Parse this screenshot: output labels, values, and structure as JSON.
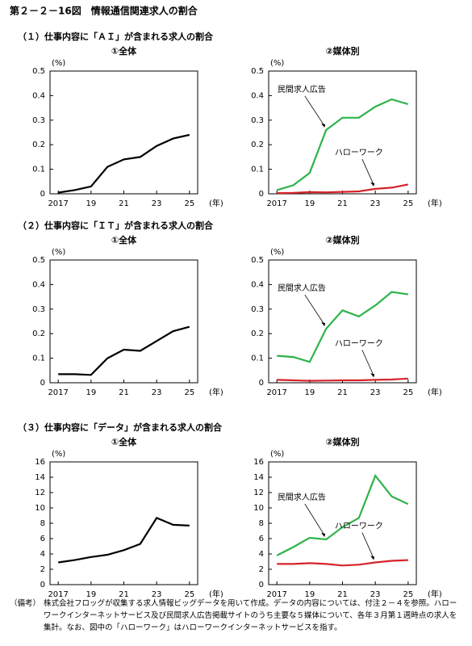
{
  "title": "第２－２－16図　情報通信関連求人の割合",
  "sections": [
    {
      "heading": "（１）仕事内容に「ＡＩ」が含まれる求人の割合"
    },
    {
      "heading": "（２）仕事内容に「ＩＴ」が含まれる求人の割合"
    },
    {
      "heading": "（３）仕事内容に「データ」が含まれる求人の割合"
    }
  ],
  "chart_data": [
    {
      "type": "line",
      "title": "①全体",
      "y_unit": "(%)",
      "x_unit": "(年)",
      "x": [
        2017,
        2018,
        2019,
        2020,
        2021,
        2022,
        2023,
        2024,
        2025
      ],
      "values": [
        0.005,
        0.015,
        0.03,
        0.11,
        0.14,
        0.15,
        0.195,
        0.225,
        0.24
      ],
      "color": "#000000",
      "xlim": [
        2016.5,
        2025.5
      ],
      "ylim": [
        0,
        0.5
      ],
      "xticks": [
        2017,
        {
          "value": 2019,
          "label": "19"
        },
        {
          "value": 2021,
          "label": "21"
        },
        {
          "value": 2023,
          "label": "23"
        },
        {
          "value": 2025,
          "label": "25"
        }
      ],
      "yticks": [
        0,
        0.1,
        0.2,
        0.3,
        0.4,
        0.5
      ]
    },
    {
      "type": "line",
      "title": "②媒体別",
      "y_unit": "(%)",
      "x_unit": "(年)",
      "x": [
        2017,
        2018,
        2019,
        2020,
        2021,
        2022,
        2023,
        2024,
        2025
      ],
      "series": [
        {
          "name": "民間求人広告",
          "color": "#2db34a",
          "values": [
            0.015,
            0.035,
            0.085,
            0.26,
            0.31,
            0.31,
            0.355,
            0.385,
            0.365
          ]
        },
        {
          "name": "ハローワーク",
          "color": "#d6232a",
          "values": [
            0.003,
            0.004,
            0.007,
            0.006,
            0.008,
            0.01,
            0.02,
            0.025,
            0.038
          ]
        }
      ],
      "xlim": [
        2016.5,
        2025.5
      ],
      "ylim": [
        0,
        0.5
      ],
      "xticks": [
        2017,
        {
          "value": 2019,
          "label": "19"
        },
        {
          "value": 2021,
          "label": "21"
        },
        {
          "value": 2023,
          "label": "23"
        },
        {
          "value": 2025,
          "label": "25"
        }
      ],
      "yticks": [
        0,
        0.1,
        0.2,
        0.3,
        0.4,
        0.5
      ]
    },
    {
      "type": "line",
      "title": "①全体",
      "y_unit": "(%)",
      "x_unit": "(年)",
      "x": [
        2017,
        2018,
        2019,
        2020,
        2021,
        2022,
        2023,
        2024,
        2025
      ],
      "values": [
        0.035,
        0.035,
        0.032,
        0.1,
        0.135,
        0.13,
        0.17,
        0.21,
        0.228
      ],
      "color": "#000000",
      "xlim": [
        2016.5,
        2025.5
      ],
      "ylim": [
        0,
        0.5
      ],
      "xticks": [
        2017,
        {
          "value": 2019,
          "label": "19"
        },
        {
          "value": 2021,
          "label": "21"
        },
        {
          "value": 2023,
          "label": "23"
        },
        {
          "value": 2025,
          "label": "25"
        }
      ],
      "yticks": [
        0,
        0.1,
        0.2,
        0.3,
        0.4,
        0.5
      ]
    },
    {
      "type": "line",
      "title": "②媒体別",
      "y_unit": "(%)",
      "x_unit": "(年)",
      "x": [
        2017,
        2018,
        2019,
        2020,
        2021,
        2022,
        2023,
        2024,
        2025
      ],
      "series": [
        {
          "name": "民間求人広告",
          "color": "#2db34a",
          "values": [
            0.11,
            0.105,
            0.085,
            0.22,
            0.295,
            0.27,
            0.315,
            0.37,
            0.36
          ]
        },
        {
          "name": "ハローワーク",
          "color": "#d6232a",
          "values": [
            0.012,
            0.01,
            0.008,
            0.009,
            0.01,
            0.01,
            0.012,
            0.013,
            0.017
          ]
        }
      ],
      "xlim": [
        2016.5,
        2025.5
      ],
      "ylim": [
        0,
        0.5
      ],
      "xticks": [
        2017,
        {
          "value": 2019,
          "label": "19"
        },
        {
          "value": 2021,
          "label": "21"
        },
        {
          "value": 2023,
          "label": "23"
        },
        {
          "value": 2025,
          "label": "25"
        }
      ],
      "yticks": [
        0,
        0.1,
        0.2,
        0.3,
        0.4,
        0.5
      ]
    },
    {
      "type": "line",
      "title": "①全体",
      "y_unit": "(%)",
      "x_unit": "(年)",
      "x": [
        2017,
        2018,
        2019,
        2020,
        2021,
        2022,
        2023,
        2024,
        2025
      ],
      "values": [
        2.9,
        3.2,
        3.6,
        3.9,
        4.5,
        5.3,
        8.7,
        7.8,
        7.7
      ],
      "color": "#000000",
      "xlim": [
        2016.5,
        2025.5
      ],
      "ylim": [
        0,
        16
      ],
      "xticks": [
        2017,
        {
          "value": 2019,
          "label": "19"
        },
        {
          "value": 2021,
          "label": "21"
        },
        {
          "value": 2023,
          "label": "23"
        },
        {
          "value": 2025,
          "label": "25"
        }
      ],
      "yticks": [
        0,
        2,
        4,
        6,
        8,
        10,
        12,
        14,
        16
      ]
    },
    {
      "type": "line",
      "title": "②媒体別",
      "y_unit": "(%)",
      "x_unit": "(年)",
      "x": [
        2017,
        2018,
        2019,
        2020,
        2021,
        2022,
        2023,
        2024,
        2025
      ],
      "series": [
        {
          "name": "民間求人広告",
          "color": "#2db34a",
          "values": [
            3.8,
            4.9,
            6.1,
            5.9,
            7.5,
            8.7,
            14.2,
            11.5,
            10.5
          ]
        },
        {
          "name": "ハローワーク",
          "color": "#d6232a",
          "values": [
            2.7,
            2.7,
            2.8,
            2.7,
            2.5,
            2.6,
            2.9,
            3.1,
            3.2
          ]
        }
      ],
      "xlim": [
        2016.5,
        2025.5
      ],
      "ylim": [
        0,
        16
      ],
      "xticks": [
        2017,
        {
          "value": 2019,
          "label": "19"
        },
        {
          "value": 2021,
          "label": "21"
        },
        {
          "value": 2023,
          "label": "23"
        },
        {
          "value": 2025,
          "label": "25"
        }
      ],
      "yticks": [
        0,
        2,
        4,
        6,
        8,
        10,
        12,
        14,
        16
      ]
    }
  ],
  "note": {
    "label": "（備考）",
    "text": "株式会社フロッグが収集する求人情報ビッグデータを用いて作成。データの内容については、付注２－４を参照。ハローワークインターネットサービス及び民間求人広告掲載サイトのうち主要な５媒体について、各年３月第１週時点の求人を集計。なお、図中の「ハローワーク」はハローワークインターネットサービスを指す。"
  }
}
